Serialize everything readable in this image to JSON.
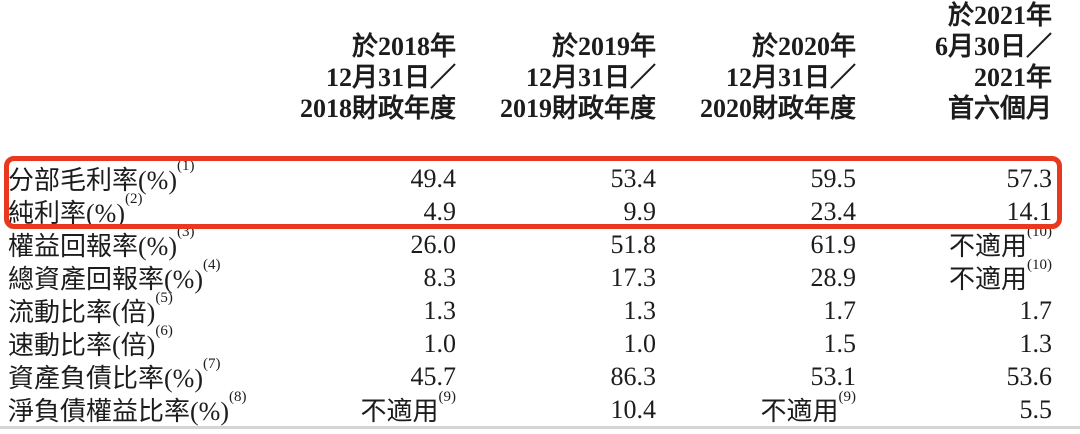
{
  "page": {
    "background": "#ffffff",
    "text_color": "#1c1c1c",
    "highlight_box_color": "#e8381d",
    "bottom_rule_color": "#d5d5d5"
  },
  "table": {
    "header": {
      "cols": [
        {
          "lines": [
            "於2018年",
            "12月31日／",
            "2018財政年度"
          ]
        },
        {
          "lines": [
            "於2019年",
            "12月31日／",
            "2019財政年度"
          ]
        },
        {
          "lines": [
            "於2020年",
            "12月31日／",
            "2020財政年度"
          ]
        },
        {
          "lines": [
            "於2021年",
            "6月30日／",
            "2021年",
            "首六個月"
          ]
        }
      ]
    },
    "rows": [
      {
        "label": {
          "text": "分部毛利率(%)",
          "sup": "(1)"
        },
        "values": [
          {
            "text": "49.4",
            "sup": ""
          },
          {
            "text": "53.4",
            "sup": ""
          },
          {
            "text": "59.5",
            "sup": ""
          },
          {
            "text": "57.3",
            "sup": ""
          }
        ],
        "highlighted": true
      },
      {
        "label": {
          "text": "純利率(%)",
          "sup": "(2)"
        },
        "values": [
          {
            "text": "4.9",
            "sup": ""
          },
          {
            "text": "9.9",
            "sup": ""
          },
          {
            "text": "23.4",
            "sup": ""
          },
          {
            "text": "14.1",
            "sup": ""
          }
        ],
        "highlighted": true
      },
      {
        "label": {
          "text": "權益回報率(%)",
          "sup": "(3)"
        },
        "values": [
          {
            "text": "26.0",
            "sup": ""
          },
          {
            "text": "51.8",
            "sup": ""
          },
          {
            "text": "61.9",
            "sup": ""
          },
          {
            "text": "不適用",
            "sup": "(10)"
          }
        ],
        "highlighted": false
      },
      {
        "label": {
          "text": "總資產回報率(%)",
          "sup": "(4)"
        },
        "values": [
          {
            "text": "8.3",
            "sup": ""
          },
          {
            "text": "17.3",
            "sup": ""
          },
          {
            "text": "28.9",
            "sup": ""
          },
          {
            "text": "不適用",
            "sup": "(10)"
          }
        ],
        "highlighted": false
      },
      {
        "label": {
          "text": "流動比率(倍)",
          "sup": "(5)"
        },
        "values": [
          {
            "text": "1.3",
            "sup": ""
          },
          {
            "text": "1.3",
            "sup": ""
          },
          {
            "text": "1.7",
            "sup": ""
          },
          {
            "text": "1.7",
            "sup": ""
          }
        ],
        "highlighted": false
      },
      {
        "label": {
          "text": "速動比率(倍)",
          "sup": "(6)"
        },
        "values": [
          {
            "text": "1.0",
            "sup": ""
          },
          {
            "text": "1.0",
            "sup": ""
          },
          {
            "text": "1.5",
            "sup": ""
          },
          {
            "text": "1.3",
            "sup": ""
          }
        ],
        "highlighted": false
      },
      {
        "label": {
          "text": "資產負債比率(%)",
          "sup": "(7)"
        },
        "values": [
          {
            "text": "45.7",
            "sup": ""
          },
          {
            "text": "86.3",
            "sup": ""
          },
          {
            "text": "53.1",
            "sup": ""
          },
          {
            "text": "53.6",
            "sup": ""
          }
        ],
        "highlighted": false
      },
      {
        "label": {
          "text": "淨負債權益比率(%)",
          "sup": "(8)"
        },
        "values": [
          {
            "text": "不適用",
            "sup": "(9)"
          },
          {
            "text": "10.4",
            "sup": ""
          },
          {
            "text": "不適用",
            "sup": "(9)"
          },
          {
            "text": "5.5",
            "sup": ""
          }
        ],
        "highlighted": false
      }
    ]
  }
}
